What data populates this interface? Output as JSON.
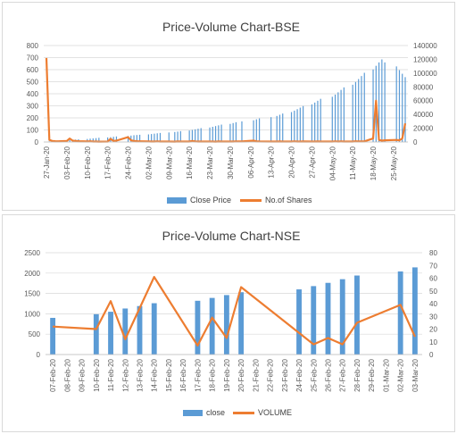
{
  "chart_data": [
    {
      "type": "bar+line",
      "title": "Price-Volume Chart-BSE",
      "y_left_ticks": [
        "0",
        "100",
        "200",
        "300",
        "400",
        "500",
        "600",
        "700",
        "800"
      ],
      "y_right_ticks": [
        "0",
        "20000",
        "40000",
        "60000",
        "80000",
        "100000",
        "120000",
        "140000"
      ],
      "ylim_left": [
        0,
        800
      ],
      "ylim_right": [
        0,
        140000
      ],
      "x_tick_labels": [
        "27-Jan-20",
        "03-Feb-20",
        "10-Feb-20",
        "17-Feb-20",
        "24-Feb-20",
        "02-Mar-20",
        "09-Mar-20",
        "16-Mar-20",
        "23-Mar-20",
        "30-Mar-20",
        "06-Apr-20",
        "13-Apr-20",
        "20-Apr-20",
        "27-Apr-20",
        "04-May-20",
        "11-May-20",
        "18-May-20",
        "25-May-20"
      ],
      "x_start": "27-Jan-20",
      "x_end": "29-May-20",
      "bar_series": {
        "name": "Close Price",
        "points": [
          [
            "28-Jan-20",
            5
          ],
          [
            "29-Jan-20",
            6
          ],
          [
            "30-Jan-20",
            7
          ],
          [
            "31-Jan-20",
            8
          ],
          [
            "03-Feb-20",
            12
          ],
          [
            "04-Feb-20",
            15
          ],
          [
            "05-Feb-20",
            18
          ],
          [
            "06-Feb-20",
            20
          ],
          [
            "07-Feb-20",
            22
          ],
          [
            "10-Feb-20",
            25
          ],
          [
            "11-Feb-20",
            28
          ],
          [
            "12-Feb-20",
            30
          ],
          [
            "13-Feb-20",
            32
          ],
          [
            "14-Feb-20",
            35
          ],
          [
            "17-Feb-20",
            38
          ],
          [
            "18-Feb-20",
            40
          ],
          [
            "19-Feb-20",
            43
          ],
          [
            "20-Feb-20",
            46
          ],
          [
            "24-Feb-20",
            50
          ],
          [
            "25-Feb-20",
            53
          ],
          [
            "26-Feb-20",
            56
          ],
          [
            "27-Feb-20",
            58
          ],
          [
            "28-Feb-20",
            60
          ],
          [
            "02-Mar-20",
            63
          ],
          [
            "03-Mar-20",
            66
          ],
          [
            "04-Mar-20",
            69
          ],
          [
            "05-Mar-20",
            72
          ],
          [
            "06-Mar-20",
            75
          ],
          [
            "09-Mar-20",
            79
          ],
          [
            "11-Mar-20",
            83
          ],
          [
            "12-Mar-20",
            86
          ],
          [
            "13-Mar-20",
            90
          ],
          [
            "16-Mar-20",
            95
          ],
          [
            "17-Mar-20",
            100
          ],
          [
            "18-Mar-20",
            105
          ],
          [
            "19-Mar-20",
            110
          ],
          [
            "20-Mar-20",
            115
          ],
          [
            "23-Mar-20",
            120
          ],
          [
            "24-Mar-20",
            126
          ],
          [
            "25-Mar-20",
            132
          ],
          [
            "26-Mar-20",
            138
          ],
          [
            "27-Mar-20",
            144
          ],
          [
            "30-Mar-20",
            150
          ],
          [
            "31-Mar-20",
            157
          ],
          [
            "01-Apr-20",
            164
          ],
          [
            "03-Apr-20",
            171
          ],
          [
            "07-Apr-20",
            180
          ],
          [
            "08-Apr-20",
            188
          ],
          [
            "09-Apr-20",
            196
          ],
          [
            "13-Apr-20",
            206
          ],
          [
            "15-Apr-20",
            216
          ],
          [
            "16-Apr-20",
            226
          ],
          [
            "17-Apr-20",
            236
          ],
          [
            "20-Apr-20",
            248
          ],
          [
            "21-Apr-20",
            260
          ],
          [
            "22-Apr-20",
            272
          ],
          [
            "23-Apr-20",
            285
          ],
          [
            "24-Apr-20",
            298
          ],
          [
            "27-Apr-20",
            312
          ],
          [
            "28-Apr-20",
            327
          ],
          [
            "29-Apr-20",
            342
          ],
          [
            "30-Apr-20",
            358
          ],
          [
            "04-May-20",
            375
          ],
          [
            "05-May-20",
            393
          ],
          [
            "06-May-20",
            412
          ],
          [
            "07-May-20",
            432
          ],
          [
            "08-May-20",
            453
          ],
          [
            "11-May-20",
            475
          ],
          [
            "12-May-20",
            498
          ],
          [
            "13-May-20",
            522
          ],
          [
            "14-May-20",
            547
          ],
          [
            "15-May-20",
            574
          ],
          [
            "18-May-20",
            602
          ],
          [
            "19-May-20",
            632
          ],
          [
            "20-May-20",
            660
          ],
          [
            "21-May-20",
            685
          ],
          [
            "22-May-20",
            660
          ],
          [
            "26-May-20",
            627
          ],
          [
            "27-May-20",
            596
          ],
          [
            "28-May-20",
            566
          ],
          [
            "29-May-20",
            538
          ]
        ]
      },
      "line_series": {
        "name": "No.of Shares",
        "points": [
          [
            "27-Jan-20",
            122000
          ],
          [
            "28-Jan-20",
            3000
          ],
          [
            "29-Jan-20",
            1500
          ],
          [
            "30-Jan-20",
            1200
          ],
          [
            "31-Jan-20",
            1000
          ],
          [
            "03-Feb-20",
            1500
          ],
          [
            "04-Feb-20",
            5000
          ],
          [
            "05-Feb-20",
            2000
          ],
          [
            "06-Feb-20",
            1500
          ],
          [
            "07-Feb-20",
            1200
          ],
          [
            "10-Feb-20",
            800
          ],
          [
            "11-Feb-20",
            1000
          ],
          [
            "12-Feb-20",
            700
          ],
          [
            "13-Feb-20",
            600
          ],
          [
            "14-Feb-20",
            500
          ],
          [
            "17-Feb-20",
            600
          ],
          [
            "18-Feb-20",
            4500
          ],
          [
            "19-Feb-20",
            1500
          ],
          [
            "20-Feb-20",
            2000
          ],
          [
            "24-Feb-20",
            7000
          ],
          [
            "25-Feb-20",
            2500
          ],
          [
            "26-Feb-20",
            1500
          ],
          [
            "27-Feb-20",
            1200
          ],
          [
            "28-Feb-20",
            1000
          ],
          [
            "02-Mar-20",
            800
          ],
          [
            "03-Mar-20",
            700
          ],
          [
            "04-Mar-20",
            600
          ],
          [
            "05-Mar-20",
            900
          ],
          [
            "06-Mar-20",
            700
          ],
          [
            "09-Mar-20",
            600
          ],
          [
            "11-Mar-20",
            500
          ],
          [
            "12-Mar-20",
            800
          ],
          [
            "13-Mar-20",
            600
          ],
          [
            "16-Mar-20",
            700
          ],
          [
            "17-Mar-20",
            1500
          ],
          [
            "18-Mar-20",
            900
          ],
          [
            "19-Mar-20",
            700
          ],
          [
            "20-Mar-20",
            600
          ],
          [
            "23-Mar-20",
            700
          ],
          [
            "24-Mar-20",
            600
          ],
          [
            "25-Mar-20",
            500
          ],
          [
            "26-Mar-20",
            800
          ],
          [
            "27-Mar-20",
            700
          ],
          [
            "30-Mar-20",
            600
          ],
          [
            "31-Mar-20",
            700
          ],
          [
            "01-Apr-20",
            900
          ],
          [
            "03-Apr-20",
            800
          ],
          [
            "07-Apr-20",
            2000
          ],
          [
            "08-Apr-20",
            900
          ],
          [
            "09-Apr-20",
            800
          ],
          [
            "13-Apr-20",
            700
          ],
          [
            "15-Apr-20",
            600
          ],
          [
            "16-Apr-20",
            800
          ],
          [
            "17-Apr-20",
            700
          ],
          [
            "20-Apr-20",
            600
          ],
          [
            "21-Apr-20",
            900
          ],
          [
            "22-Apr-20",
            700
          ],
          [
            "23-Apr-20",
            600
          ],
          [
            "24-Apr-20",
            800
          ],
          [
            "27-Apr-20",
            700
          ],
          [
            "28-Apr-20",
            600
          ],
          [
            "29-Apr-20",
            800
          ],
          [
            "30-Apr-20",
            700
          ],
          [
            "04-May-20",
            600
          ],
          [
            "05-May-20",
            900
          ],
          [
            "06-May-20",
            700
          ],
          [
            "07-May-20",
            800
          ],
          [
            "08-May-20",
            600
          ],
          [
            "11-May-20",
            700
          ],
          [
            "12-May-20",
            1000
          ],
          [
            "13-May-20",
            900
          ],
          [
            "14-May-20",
            800
          ],
          [
            "15-May-20",
            900
          ],
          [
            "18-May-20",
            5000
          ],
          [
            "19-May-20",
            60000
          ],
          [
            "20-May-20",
            3000
          ],
          [
            "21-May-20",
            2000
          ],
          [
            "22-May-20",
            2500
          ],
          [
            "26-May-20",
            3000
          ],
          [
            "27-May-20",
            2500
          ],
          [
            "28-May-20",
            5000
          ],
          [
            "29-May-20",
            27000
          ]
        ]
      },
      "bar_color": "#5b9bd5",
      "line_color": "#ed7d31",
      "legend_position": "bottom"
    },
    {
      "type": "bar+line",
      "title": "Price-Volume Chart-NSE",
      "y_left_ticks": [
        "0",
        "500",
        "1000",
        "1500",
        "2000",
        "2500"
      ],
      "y_right_ticks": [
        "0",
        "10",
        "20",
        "30",
        "40",
        "50",
        "60",
        "70",
        "80"
      ],
      "ylim_left": [
        0,
        2500
      ],
      "ylim_right": [
        0,
        80
      ],
      "categories": [
        "07-Feb-20",
        "08-Feb-20",
        "09-Feb-20",
        "10-Feb-20",
        "11-Feb-20",
        "12-Feb-20",
        "13-Feb-20",
        "14-Feb-20",
        "15-Feb-20",
        "16-Feb-20",
        "17-Feb-20",
        "18-Feb-20",
        "19-Feb-20",
        "20-Feb-20",
        "21-Feb-20",
        "22-Feb-20",
        "23-Feb-20",
        "24-Feb-20",
        "25-Feb-20",
        "26-Feb-20",
        "27-Feb-20",
        "28-Feb-20",
        "29-Feb-20",
        "01-Mar-20",
        "02-Mar-20",
        "03-Mar-20"
      ],
      "bar_series": {
        "name": "close",
        "values": [
          900,
          null,
          null,
          990,
          1050,
          1130,
          1190,
          1260,
          null,
          null,
          1320,
          1390,
          1460,
          1530,
          null,
          null,
          null,
          1600,
          1680,
          1760,
          1850,
          1940,
          null,
          null,
          2040,
          2140
        ]
      },
      "line_series": {
        "name": "VOLUME",
        "points": [
          [
            0,
            22
          ],
          [
            3,
            20
          ],
          [
            4,
            42
          ],
          [
            5,
            12
          ],
          [
            7,
            61
          ],
          [
            10,
            7
          ],
          [
            11,
            29
          ],
          [
            12,
            13
          ],
          [
            13,
            53
          ],
          [
            17,
            17
          ],
          [
            18,
            8
          ],
          [
            19,
            13
          ],
          [
            20,
            8
          ],
          [
            21,
            25
          ],
          [
            24,
            39
          ],
          [
            25,
            14
          ]
        ]
      },
      "bar_color": "#5b9bd5",
      "line_color": "#ed7d31",
      "legend_position": "bottom"
    }
  ]
}
